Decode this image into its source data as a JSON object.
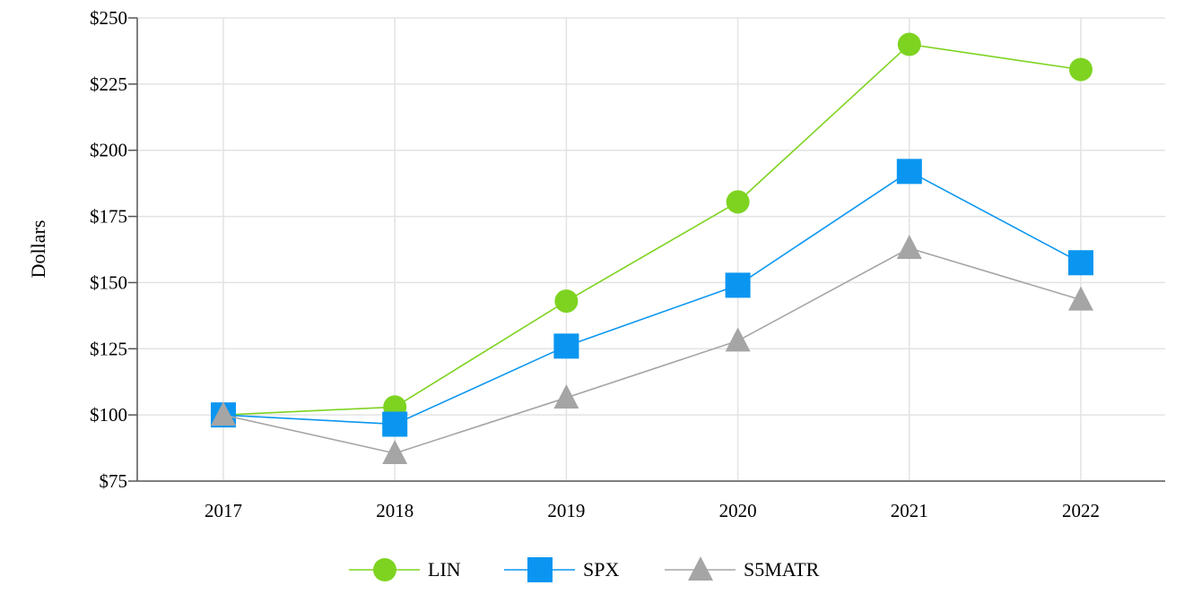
{
  "chart_data": {
    "type": "line",
    "title": "",
    "xlabel": "",
    "ylabel": "Dollars",
    "categories": [
      "2017",
      "2018",
      "2019",
      "2020",
      "2021",
      "2022"
    ],
    "ylim": [
      75,
      250
    ],
    "yticks": [
      75,
      100,
      125,
      150,
      175,
      200,
      225,
      250
    ],
    "ytick_labels": [
      "$75",
      "$100",
      "$125",
      "$150",
      "$175",
      "$200",
      "$225",
      "$250"
    ],
    "grid": true,
    "legend_position": "bottom",
    "series": [
      {
        "name": "LIN",
        "marker": "circle",
        "color": "#7ED321",
        "values": [
          100,
          103,
          143,
          180.5,
          240,
          230.5
        ]
      },
      {
        "name": "SPX",
        "marker": "square",
        "color": "#0A96F0",
        "values": [
          100,
          96.5,
          126,
          149,
          192,
          157.5
        ]
      },
      {
        "name": "S5MATR",
        "marker": "triangle",
        "color": "#A5A5A5",
        "values": [
          100,
          85.5,
          106.5,
          128,
          163,
          143.5
        ]
      }
    ]
  }
}
